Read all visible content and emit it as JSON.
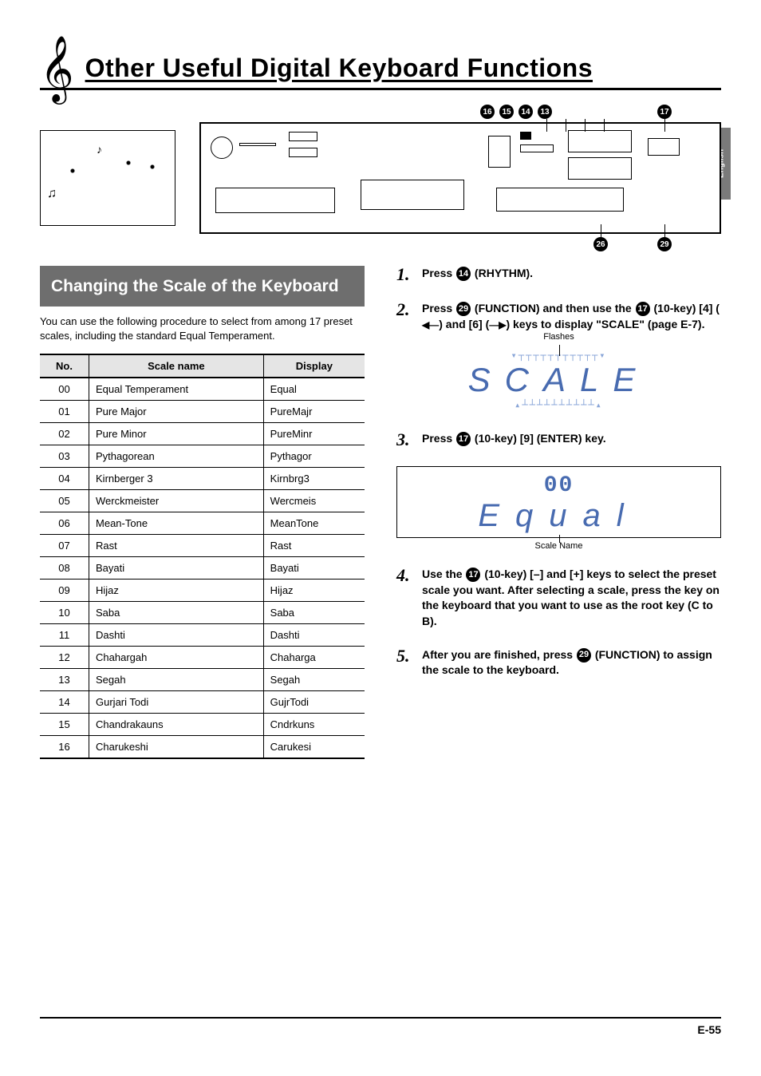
{
  "page": {
    "title": "Other Useful Digital Keyboard Functions",
    "langTab": "English",
    "pageNum": "E-55"
  },
  "diagram": {
    "topCallouts": [
      "16",
      "15",
      "14",
      "13"
    ],
    "topRight": "17",
    "bottomCallouts": [
      "26",
      "29"
    ]
  },
  "section": {
    "heading": "Changing the Scale of the Keyboard",
    "intro": "You can use the following procedure to select from among 17 preset scales, including the standard Equal Temperament."
  },
  "table": {
    "headers": [
      "No.",
      "Scale name",
      "Display"
    ],
    "rows": [
      [
        "00",
        "Equal Temperament",
        "Equal"
      ],
      [
        "01",
        "Pure Major",
        "PureMajr"
      ],
      [
        "02",
        "Pure Minor",
        "PureMinr"
      ],
      [
        "03",
        "Pythagorean",
        "Pythagor"
      ],
      [
        "04",
        "Kirnberger 3",
        "Kirnbrg3"
      ],
      [
        "05",
        "Werckmeister",
        "Wercmeis"
      ],
      [
        "06",
        "Mean-Tone",
        "MeanTone"
      ],
      [
        "07",
        "Rast",
        "Rast"
      ],
      [
        "08",
        "Bayati",
        "Bayati"
      ],
      [
        "09",
        "Hijaz",
        "Hijaz"
      ],
      [
        "10",
        "Saba",
        "Saba"
      ],
      [
        "11",
        "Dashti",
        "Dashti"
      ],
      [
        "12",
        "Chahargah",
        "Chaharga"
      ],
      [
        "13",
        "Segah",
        "Segah"
      ],
      [
        "14",
        "Gurjari Todi",
        "GujrTodi"
      ],
      [
        "15",
        "Chandrakauns",
        "Cndrkuns"
      ],
      [
        "16",
        "Charukeshi",
        "Carukesi"
      ]
    ]
  },
  "steps": {
    "s1": {
      "num": "1.",
      "prefix": "Press ",
      "circ": "14",
      "suffix": " (RHYTHM)."
    },
    "s2": {
      "num": "2.",
      "prefix": "Press ",
      "circ1": "29",
      "mid1": " (FUNCTION) and then use the ",
      "circ2": "17",
      "mid2": " (10-key) [4] (",
      "arrowL": "◀—",
      "mid3": ") and [6] (",
      "arrowR": "—▶",
      "mid4": ") keys to display \"SCALE\" (page E-7)."
    },
    "s3": {
      "num": "3.",
      "prefix": "Press ",
      "circ": "17",
      "suffix": " (10-key) [9] (ENTER) key."
    },
    "s4": {
      "num": "4.",
      "prefix": "Use the ",
      "circ": "17",
      "suffix": " (10-key) [–] and [+] keys to select the preset scale you want. After selecting a scale, press the key on the keyboard that you want to use as the root key (C to B)."
    },
    "s5": {
      "num": "5.",
      "prefix": "After you are finished, press ",
      "circ": "29",
      "suffix": " (FUNCTION) to assign the scale to the keyboard."
    }
  },
  "lcd": {
    "flashes": "Flashes",
    "scaleWord": "SCALE",
    "equalNum": "00",
    "equalWord": "Equal",
    "caption": "Scale Name"
  },
  "colors": {
    "headingBg": "#6e6e6e",
    "lcdColor": "#486bb0",
    "thBg": "#e5e5e5"
  }
}
